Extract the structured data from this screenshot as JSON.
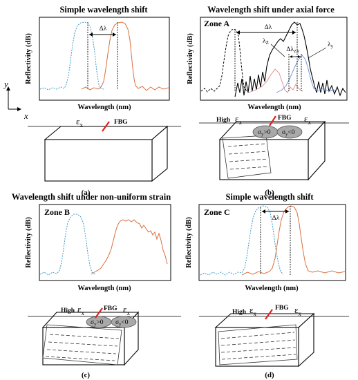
{
  "panels": {
    "a": {
      "title": "Simple wavelength shift",
      "ylabel": "Reflectivity (dB)",
      "xlabel": "Wavelength (nm)",
      "shift": "Δλ",
      "strain": "ε",
      "strain_sub": "x",
      "fbg": "FBG",
      "label": "(a)"
    },
    "b": {
      "title": "Wavelength shift under axial force",
      "zone": "Zone A",
      "ylabel": "Reflectivity (dB)",
      "xlabel": "Wavelength (nm)",
      "shift": "Δλ",
      "lambda_z": "λ",
      "lambda_z_sub": "Z",
      "lambda_y": "λ",
      "lambda_y_sub": "y",
      "shift_zy": "Δλ",
      "shift_zy_sub": "ZY",
      "high": "High",
      "strain": "ε",
      "strain_sub": "x",
      "strain2": "ε",
      "strain2_sub": "x",
      "fbg": "FBG",
      "sigma_pos": "σ",
      "sigma_pos_sub": "y",
      "sigma_pos_rel": ">0",
      "sigma_neg": "σ",
      "sigma_neg_sub": "y",
      "sigma_neg_rel": "<0",
      "label": "(b)"
    },
    "c": {
      "title": "Wavelength shift under non-uniform strain",
      "zone": "Zone B",
      "ylabel": "Reflectivity (dB)",
      "xlabel": "Wavelength (nm)",
      "high": "High",
      "strain": "ε",
      "strain_sub": "x",
      "strain2": "ε",
      "strain2_sub": "x",
      "fbg": "FBG",
      "sigma_pos": "σ",
      "sigma_pos_sub": "y",
      "sigma_pos_rel": ">0",
      "sigma_neg": "σ",
      "sigma_neg_sub": "y",
      "sigma_neg_rel": "<0",
      "label": "(c)"
    },
    "d": {
      "title": "Simple wavelength shift",
      "zone": "Zone C",
      "ylabel": "Reflectivity (dB)",
      "xlabel": "Wavelength (nm)",
      "shift": "Δλ",
      "high": "High",
      "strain": "ε",
      "strain_sub": "x",
      "strain2": "ε",
      "strain2_sub": "x",
      "fbg": "FBG",
      "label": "(d)"
    }
  },
  "axes": {
    "y": "y",
    "x": "x"
  },
  "colors": {
    "blue_curve": "#3d9bc4",
    "orange_curve": "#d9703b",
    "black_curve": "#000000",
    "fbg_mark": "#e0201c"
  }
}
